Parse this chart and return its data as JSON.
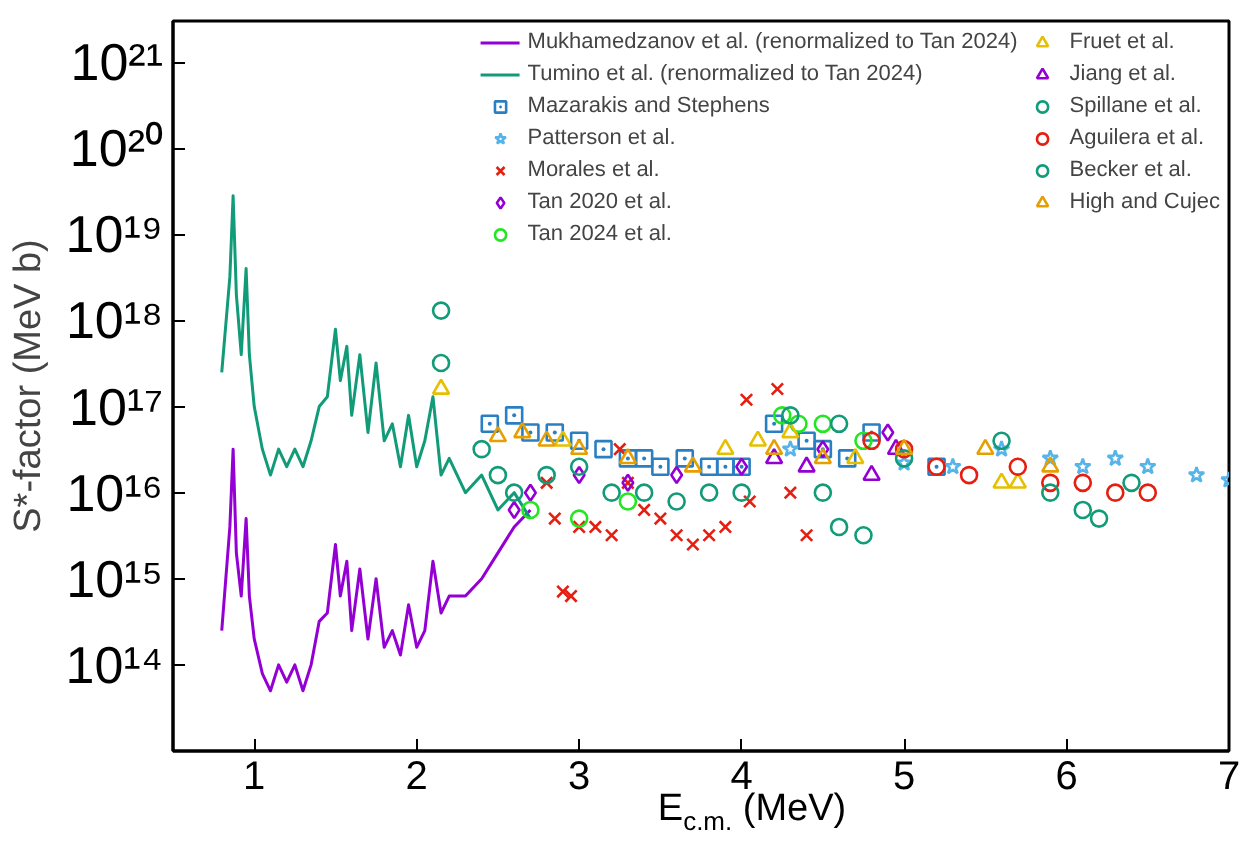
{
  "chart_data": {
    "type": "scatter",
    "xlabel": "E$_{c.m.}$ (MeV)",
    "ylabel": "S*-factor (MeV b)",
    "log": "y",
    "grid": false,
    "legend": "top right",
    "xlim": [
      0.5,
      7
    ],
    "xticks": [
      1,
      2,
      3,
      4,
      5,
      6,
      7
    ],
    "ylim": [
      10000000000000.0,
      3e+21
    ],
    "yticks": [
      {
        "value": 100000000000000.0,
        "label": "10¹⁴"
      },
      {
        "value": 1000000000000000.0,
        "label": "10¹⁵"
      },
      {
        "value": 1e+16,
        "label": "10¹⁶"
      },
      {
        "value": 1e+17,
        "label": "10¹⁷"
      },
      {
        "value": 1e+18,
        "label": "10¹⁸"
      },
      {
        "value": 1e+19,
        "label": "10¹⁹"
      },
      {
        "value": 1e+20,
        "label": "10²⁰"
      },
      {
        "value": 1e+21,
        "label": "10²¹"
      }
    ],
    "series": [
      {
        "name": "Mukhamedzanov et al. (renormalized to Tan 2024)",
        "type": "line",
        "marker": "none",
        "color": "#9400d3",
        "x": [
          0.8,
          0.85,
          0.87,
          0.89,
          0.92,
          0.95,
          0.97,
          1.0,
          1.05,
          1.1,
          1.15,
          1.2,
          1.25,
          1.3,
          1.35,
          1.4,
          1.45,
          1.5,
          1.53,
          1.57,
          1.6,
          1.65,
          1.7,
          1.75,
          1.8,
          1.85,
          1.9,
          1.95,
          2.0,
          2.05,
          2.1,
          2.15,
          2.2,
          2.3,
          2.4,
          2.5,
          2.6,
          2.7
        ],
        "values": [
          250000000000000.0,
          4000000000000000.0,
          3.2e+16,
          2000000000000000.0,
          630000000000000.0,
          5000000000000000.0,
          630000000000000.0,
          200000000000000.0,
          79000000000000.0,
          50000000000000.0,
          100000000000000.0,
          63000000000000.0,
          100000000000000.0,
          50000000000000.0,
          100000000000000.0,
          320000000000000.0,
          400000000000000.0,
          2500000000000000.0,
          630000000000000.0,
          1600000000000000.0,
          250000000000000.0,
          1300000000000000.0,
          200000000000000.0,
          1000000000000000.0,
          160000000000000.0,
          250000000000000.0,
          130000000000000.0,
          500000000000000.0,
          160000000000000.0,
          250000000000000.0,
          1600000000000000.0,
          400000000000000.0,
          630000000000000.0,
          630000000000000.0,
          1000000000000000.0,
          2000000000000000.0,
          4000000000000000.0,
          6300000000000000.0
        ]
      },
      {
        "name": "Tumino et al. (renormalized to Tan 2024)",
        "type": "line",
        "marker": "none",
        "color": "#129b78",
        "x": [
          0.8,
          0.85,
          0.87,
          0.89,
          0.92,
          0.95,
          0.97,
          1.0,
          1.05,
          1.1,
          1.15,
          1.2,
          1.25,
          1.3,
          1.35,
          1.4,
          1.45,
          1.5,
          1.53,
          1.57,
          1.6,
          1.65,
          1.7,
          1.75,
          1.8,
          1.85,
          1.9,
          1.95,
          2.0,
          2.05,
          2.1,
          2.15,
          2.2,
          2.3,
          2.4,
          2.5,
          2.6,
          2.7
        ],
        "values": [
          2.5e+17,
          3.2e+18,
          2.8e+19,
          2e+18,
          4e+17,
          4e+18,
          4e+17,
          1e+17,
          3.2e+16,
          1.6e+16,
          3.2e+16,
          2e+16,
          3.2e+16,
          2e+16,
          4e+16,
          1e+17,
          1.3e+17,
          7.9e+17,
          2e+17,
          5e+17,
          7.9e+16,
          4e+17,
          5e+16,
          3.2e+17,
          4e+16,
          6.3e+16,
          2e+16,
          7.9e+16,
          2e+16,
          4e+16,
          1.3e+17,
          1.6e+16,
          2.5e+16,
          1e+16,
          1.6e+16,
          6300000000000000.0,
          1e+16,
          5000000000000000.0
        ]
      },
      {
        "name": "Mazarakis and Stephens",
        "marker": "square",
        "color": "#2a7fc2",
        "x": [
          2.45,
          2.6,
          2.7,
          2.85,
          3.0,
          3.15,
          3.3,
          3.4,
          3.5,
          3.65,
          3.8,
          3.9,
          4.0,
          4.2,
          4.4,
          4.5,
          4.65,
          4.8,
          5.0,
          5.2
        ],
        "values": [
          6.3e+16,
          7.9e+16,
          5e+16,
          5e+16,
          4e+16,
          3.2e+16,
          2.5e+16,
          2.5e+16,
          2e+16,
          2.5e+16,
          2e+16,
          2e+16,
          2e+16,
          6.3e+16,
          4e+16,
          3.2e+16,
          2.5e+16,
          5e+16,
          null,
          2e+16
        ]
      },
      {
        "name": "Patterson et al.",
        "marker": "star",
        "color": "#56b4e9",
        "x": [
          4.3,
          5.0,
          5.3,
          5.6,
          5.9,
          6.1,
          6.3,
          6.5,
          6.8,
          7.0
        ],
        "values": [
          3.2e+16,
          2.2e+16,
          2e+16,
          3.2e+16,
          2.5e+16,
          2e+16,
          2.5e+16,
          2e+16,
          1.6e+16,
          1.4e+16
        ]
      },
      {
        "name": "Morales et al.",
        "marker": "cross",
        "color": "#e51e10",
        "x": [
          2.8,
          2.85,
          2.9,
          2.95,
          3.0,
          3.1,
          3.2,
          3.25,
          3.3,
          3.4,
          3.5,
          3.6,
          3.7,
          3.8,
          3.9,
          4.03,
          4.05,
          4.22,
          4.3,
          4.4
        ],
        "values": [
          1.3e+16,
          5000000000000000.0,
          710000000000000.0,
          630000000000000.0,
          4000000000000000.0,
          4000000000000000.0,
          3200000000000000.0,
          3.2e+16,
          1.3e+16,
          6300000000000000.0,
          5000000000000000.0,
          3200000000000000.0,
          2500000000000000.0,
          3200000000000000.0,
          4000000000000000.0,
          1.2e+17,
          7900000000000000.0,
          1.6e+17,
          1e+16,
          3200000000000000.0
        ]
      },
      {
        "name": "Tan 2020 et al.",
        "marker": "diamond",
        "color": "#9400d3",
        "x": [
          2.6,
          2.7,
          3.0,
          3.3,
          3.6,
          4.0,
          4.5,
          4.9
        ],
        "values": [
          6300000000000000.0,
          1e+16,
          1.6e+16,
          1.3e+16,
          1.6e+16,
          2e+16,
          3.2e+16,
          5e+16
        ]
      },
      {
        "name": "Tan 2024 et al.",
        "marker": "circle",
        "color": "#22e622",
        "x": [
          2.7,
          3.0,
          3.3,
          4.25,
          4.35,
          4.5,
          4.75
        ],
        "values": [
          6300000000000000.0,
          5000000000000000.0,
          7900000000000000.0,
          7.9e+16,
          6.3e+16,
          6.3e+16,
          4e+16
        ]
      },
      {
        "name": "Fruet et al.",
        "marker": "triangle",
        "color": "#e6c000",
        "x": [
          2.15,
          2.9,
          3.9,
          4.1,
          4.3,
          4.7,
          5.6,
          5.7
        ],
        "values": [
          1.6e+17,
          4e+16,
          3.2e+16,
          4e+16,
          5e+16,
          2.5e+16,
          1.3e+16,
          1.3e+16
        ]
      },
      {
        "name": "Jiang et al.",
        "marker": "triangle",
        "color": "#9400d3",
        "x": [
          4.2,
          4.4,
          4.8,
          4.95
        ],
        "values": [
          2.5e+16,
          2e+16,
          1.6e+16,
          3.2e+16
        ]
      },
      {
        "name": "Spillane et al.",
        "marker": "circle",
        "color": "#129b78",
        "x": [
          2.15,
          2.4,
          2.5,
          2.6,
          2.8,
          3.0,
          3.2,
          3.4,
          3.6,
          3.8,
          4.0,
          4.5,
          4.6,
          4.75
        ],
        "values": [
          1.3e+18,
          3.2e+16,
          1.6e+16,
          1e+16,
          1.6e+16,
          2e+16,
          1e+16,
          1e+16,
          7900000000000000.0,
          1e+16,
          1e+16,
          1e+16,
          4000000000000000.0,
          3200000000000000.0
        ]
      },
      {
        "name": "Aguilera et al.",
        "marker": "circle",
        "color": "#e51e10",
        "x": [
          4.8,
          5.0,
          5.2,
          5.4,
          5.7,
          5.9,
          6.1,
          6.3,
          6.5
        ],
        "values": [
          4e+16,
          3.2e+16,
          2e+16,
          1.6e+16,
          2e+16,
          1.3e+16,
          1.3e+16,
          1e+16,
          1e+16
        ]
      },
      {
        "name": "Becker et al.",
        "marker": "circle",
        "color": "#129b78",
        "x": [
          2.15,
          4.3,
          4.6,
          5.0,
          5.6,
          5.9,
          6.1,
          6.2,
          6.4
        ],
        "values": [
          3.2e+17,
          7.9e+16,
          6.3e+16,
          2.5e+16,
          4e+16,
          1e+16,
          6300000000000000.0,
          5000000000000000.0,
          1.3e+16
        ]
      },
      {
        "name": "High and Cujec",
        "marker": "triangle",
        "color": "#e69f00",
        "x": [
          2.5,
          2.65,
          2.8,
          3.0,
          3.3,
          3.7,
          4.2,
          4.5,
          5.0,
          5.5,
          5.9
        ],
        "values": [
          4.5e+16,
          5e+16,
          4e+16,
          3.2e+16,
          2.5e+16,
          2e+16,
          3.2e+16,
          2.5e+16,
          3.2e+16,
          3.2e+16,
          2e+16
        ]
      }
    ]
  }
}
